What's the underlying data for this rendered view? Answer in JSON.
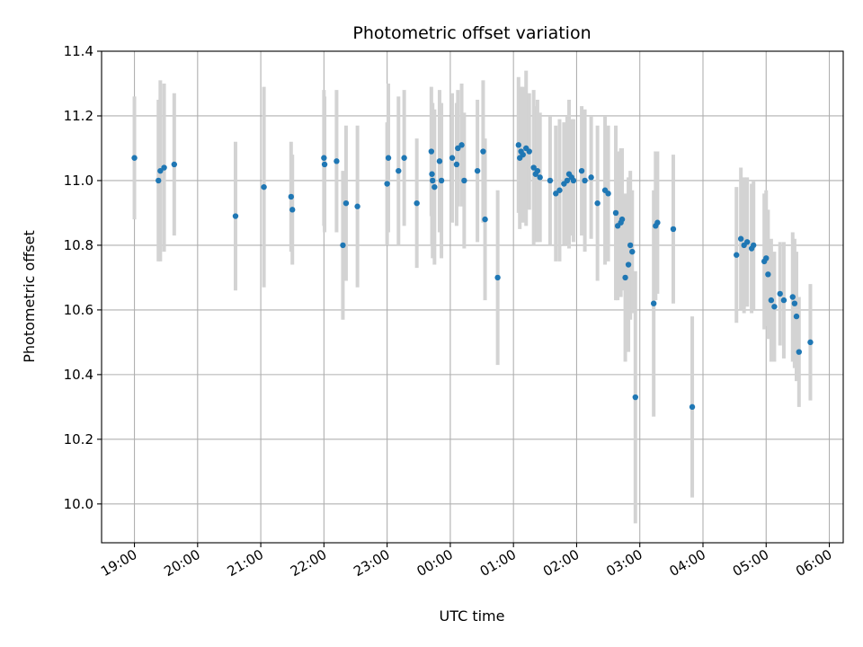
{
  "chart_data": {
    "type": "scatter",
    "title": "Photometric offset variation",
    "xlabel": "UTC time",
    "ylabel": "Photometric offset",
    "x_ticks": [
      "19:00",
      "20:00",
      "21:00",
      "22:00",
      "23:00",
      "00:00",
      "01:00",
      "02:00",
      "03:00",
      "04:00",
      "05:00",
      "06:00"
    ],
    "x_tick_hours": [
      19,
      20,
      21,
      22,
      23,
      24,
      25,
      26,
      27,
      28,
      29,
      30
    ],
    "xlim_hours": [
      18.48,
      30.22
    ],
    "y_ticks": [
      "10.0",
      "10.2",
      "10.4",
      "10.6",
      "10.8",
      "11.0",
      "11.2",
      "11.4"
    ],
    "ylim": [
      9.88,
      11.4
    ],
    "grid": true,
    "marker_color": "#1f77b4",
    "errorbar_color": "#d3d3d3",
    "x_hours": [
      19.0,
      19.38,
      19.41,
      19.47,
      19.63,
      20.6,
      21.05,
      21.48,
      21.5,
      22.0,
      22.01,
      22.2,
      22.3,
      22.35,
      22.53,
      23.0,
      23.02,
      23.18,
      23.27,
      23.47,
      23.7,
      23.71,
      23.72,
      23.75,
      23.83,
      23.86,
      24.03,
      24.1,
      24.12,
      24.18,
      24.22,
      24.43,
      24.52,
      24.55,
      24.75,
      25.08,
      25.1,
      25.12,
      25.15,
      25.2,
      25.25,
      25.32,
      25.35,
      25.38,
      25.42,
      25.58,
      25.67,
      25.73,
      25.8,
      25.85,
      25.88,
      25.92,
      25.95,
      26.08,
      26.13,
      26.23,
      26.33,
      26.45,
      26.5,
      26.62,
      26.65,
      26.7,
      26.72,
      26.77,
      26.82,
      26.85,
      26.88,
      26.93,
      27.22,
      27.25,
      27.28,
      27.53,
      27.83,
      28.53,
      28.6,
      28.65,
      28.7,
      28.77,
      28.8,
      28.97,
      29.0,
      29.03,
      29.08,
      29.13,
      29.22,
      29.28,
      29.42,
      29.45,
      29.48,
      29.52,
      29.7
    ],
    "y_values": [
      11.07,
      11.0,
      11.03,
      11.04,
      11.05,
      10.89,
      10.98,
      10.95,
      10.91,
      11.07,
      11.05,
      11.06,
      10.8,
      10.93,
      10.92,
      10.99,
      11.07,
      11.03,
      11.07,
      10.93,
      11.09,
      11.02,
      11.0,
      10.98,
      11.06,
      11.0,
      11.07,
      11.05,
      11.1,
      11.11,
      11.0,
      11.03,
      11.09,
      10.88,
      10.7,
      11.11,
      11.07,
      11.09,
      11.08,
      11.1,
      11.09,
      11.04,
      11.02,
      11.03,
      11.01,
      11.0,
      10.96,
      10.97,
      10.99,
      11.0,
      11.02,
      11.01,
      11.0,
      11.03,
      11.0,
      11.01,
      10.93,
      10.97,
      10.96,
      10.9,
      10.86,
      10.87,
      10.88,
      10.7,
      10.74,
      10.8,
      10.78,
      10.33,
      10.62,
      10.86,
      10.87,
      10.85,
      10.3,
      10.77,
      10.82,
      10.8,
      10.81,
      10.79,
      10.8,
      10.75,
      10.76,
      10.71,
      10.63,
      10.61,
      10.65,
      10.63,
      10.64,
      10.62,
      10.58,
      10.47,
      10.5
    ],
    "y_errors": [
      0.19,
      0.25,
      0.28,
      0.26,
      0.22,
      0.23,
      0.31,
      0.17,
      0.17,
      0.21,
      0.21,
      0.22,
      0.23,
      0.24,
      0.25,
      0.19,
      0.23,
      0.23,
      0.21,
      0.2,
      0.2,
      0.22,
      0.24,
      0.24,
      0.22,
      0.24,
      0.2,
      0.19,
      0.18,
      0.19,
      0.21,
      0.22,
      0.22,
      0.25,
      0.27,
      0.21,
      0.22,
      0.2,
      0.21,
      0.24,
      0.18,
      0.24,
      0.21,
      0.22,
      0.2,
      0.2,
      0.21,
      0.22,
      0.19,
      0.2,
      0.23,
      0.18,
      0.19,
      0.2,
      0.22,
      0.19,
      0.24,
      0.23,
      0.21,
      0.27,
      0.23,
      0.23,
      0.22,
      0.26,
      0.27,
      0.23,
      0.19,
      0.39,
      0.35,
      0.23,
      0.22,
      0.23,
      0.28,
      0.21,
      0.22,
      0.21,
      0.2,
      0.2,
      0.2,
      0.21,
      0.21,
      0.2,
      0.19,
      0.17,
      0.16,
      0.18,
      0.2,
      0.2,
      0.2,
      0.17,
      0.18
    ]
  }
}
